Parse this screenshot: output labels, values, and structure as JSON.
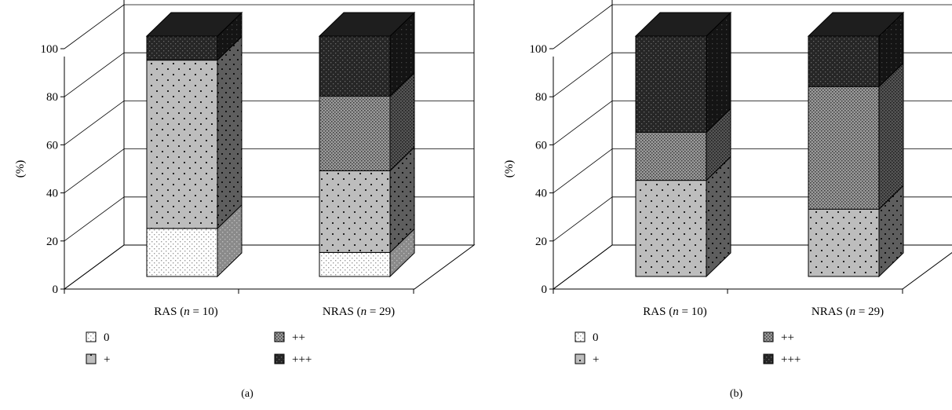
{
  "chart_data": [
    {
      "type": "bar",
      "stacked": true,
      "three_d": true,
      "panel_label": "(a)",
      "ylabel": "(%)",
      "ylim": [
        0,
        100
      ],
      "yticks": [
        "0",
        "20",
        "40",
        "60",
        "80",
        "100"
      ],
      "categories": [
        {
          "prefix": "RAS (",
          "n": "n",
          "suffix": " = 10)"
        },
        {
          "prefix": "NRAS (",
          "n": "n",
          "suffix": " = 29)"
        }
      ],
      "series": [
        {
          "name": "0",
          "values": [
            20,
            10
          ]
        },
        {
          "name": "+",
          "values": [
            70,
            34
          ]
        },
        {
          "name": "++",
          "values": [
            0,
            31
          ]
        },
        {
          "name": "+++",
          "values": [
            10,
            25
          ]
        }
      ],
      "legend_position": "bottom"
    },
    {
      "type": "bar",
      "stacked": true,
      "three_d": true,
      "panel_label": "(b)",
      "ylabel": "(%)",
      "ylim": [
        0,
        100
      ],
      "yticks": [
        "0",
        "20",
        "40",
        "60",
        "80",
        "100"
      ],
      "categories": [
        {
          "prefix": "RAS (",
          "n": "n",
          "suffix": " = 10)"
        },
        {
          "prefix": "NRAS (",
          "n": "n",
          "suffix": " = 29)"
        }
      ],
      "series": [
        {
          "name": "0",
          "values": [
            0,
            0
          ]
        },
        {
          "name": "+",
          "values": [
            40,
            28
          ]
        },
        {
          "name": "++",
          "values": [
            20,
            51
          ]
        },
        {
          "name": "+++",
          "values": [
            40,
            21
          ]
        }
      ],
      "legend_position": "bottom"
    }
  ],
  "colors": {
    "s0": "#ffffff",
    "s1": "#bebebe",
    "s2": "#8c8c8c",
    "s3": "#2a2a2a",
    "axis": "#000000",
    "grid": "#000000"
  }
}
